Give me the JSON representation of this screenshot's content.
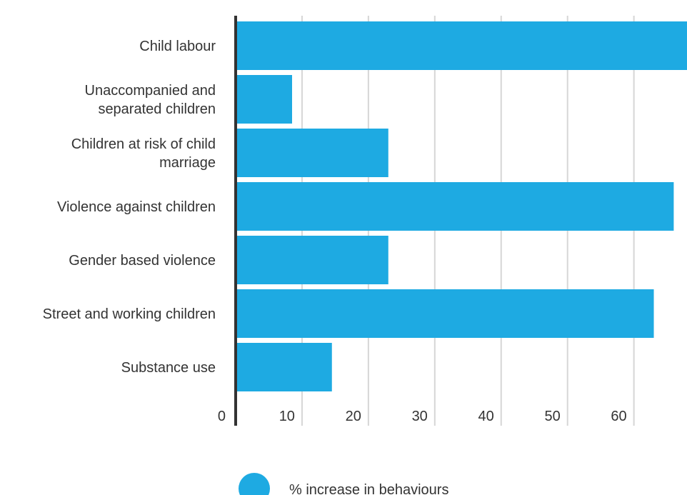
{
  "chart_data": {
    "type": "bar",
    "orientation": "horizontal",
    "categories": [
      "Child labour",
      "Unaccompanied and separated children",
      "Children at risk of child marriage",
      "Violence against children",
      "Gender based violence",
      "Street and working children",
      "Substance use"
    ],
    "category_lines": [
      [
        "Child labour"
      ],
      [
        "Unaccompanied and",
        "separated children"
      ],
      [
        "Children at risk of child",
        "marriage"
      ],
      [
        "Violence against children"
      ],
      [
        "Gender based violence"
      ],
      [
        "Street and working children"
      ],
      [
        "Substance use"
      ]
    ],
    "series": [
      {
        "name": "% increase in behaviours",
        "values": [
          68,
          8.5,
          23,
          66,
          23,
          63,
          14.5
        ]
      }
    ],
    "xticks": [
      0,
      10,
      20,
      30,
      40,
      50,
      60
    ],
    "xlim": [
      0,
      68
    ],
    "grid": true,
    "legend_position": "bottom-center",
    "colors": {
      "bar": "#1eaae2",
      "grid": "#d6d6d6",
      "axis": "#333333",
      "text": "#333333"
    }
  }
}
